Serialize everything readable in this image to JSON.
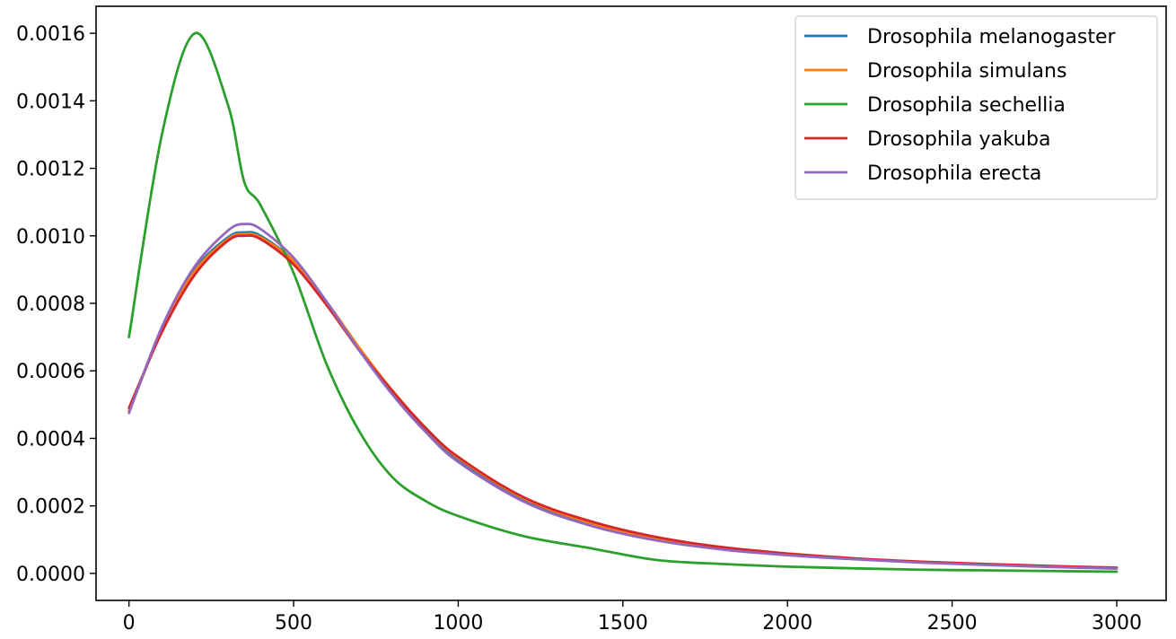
{
  "chart_data": {
    "type": "line",
    "title": "",
    "xlabel": "",
    "ylabel": "",
    "xlim": [
      -100,
      3150
    ],
    "ylim": [
      -8e-05,
      0.00168
    ],
    "xticks": [
      0,
      500,
      1000,
      1500,
      2000,
      2500,
      3000
    ],
    "xtick_labels": [
      "0",
      "500",
      "1000",
      "1500",
      "2000",
      "2500",
      "3000"
    ],
    "yticks": [
      0,
      0.0002,
      0.0004,
      0.0006,
      0.0008,
      0.001,
      0.0012,
      0.0014,
      0.0016
    ],
    "ytick_labels": [
      "0.0000",
      "0.0002",
      "0.0004",
      "0.0006",
      "0.0008",
      "0.0010",
      "0.0012",
      "0.0014",
      "0.0016"
    ],
    "grid": false,
    "legend_position": "top-right",
    "x": [
      0,
      100,
      200,
      300,
      350,
      400,
      500,
      600,
      700,
      800,
      900,
      1000,
      1200,
      1400,
      1600,
      1800,
      2000,
      2200,
      2400,
      2600,
      2800,
      3000
    ],
    "series": [
      {
        "name": "Drosophila melanogaster",
        "color": "#1f77b4",
        "values": [
          0.00048,
          0.00072,
          0.0009,
          0.000995,
          0.00101,
          0.001,
          0.000925,
          0.0008,
          0.00066,
          0.000535,
          0.000425,
          0.000335,
          0.000215,
          0.000145,
          0.0001,
          7.2e-05,
          5.5e-05,
          4.3e-05,
          3.3e-05,
          2.6e-05,
          2e-05,
          1.5e-05
        ]
      },
      {
        "name": "Drosophila simulans",
        "color": "#ff7f0e",
        "values": [
          0.00048,
          0.00072,
          0.000895,
          0.00099,
          0.001005,
          0.000995,
          0.000925,
          0.000805,
          0.000668,
          0.000542,
          0.000432,
          0.000342,
          0.000222,
          0.00015,
          0.000104,
          7.5e-05,
          5.7e-05,
          4.4e-05,
          3.4e-05,
          2.7e-05,
          2.1e-05,
          1.6e-05
        ]
      },
      {
        "name": "Drosophila sechellia",
        "color": "#2ca02c",
        "values": [
          0.0007,
          0.0013,
          0.0016,
          0.00139,
          0.00116,
          0.00109,
          0.00089,
          0.00062,
          0.00042,
          0.000285,
          0.000215,
          0.00017,
          0.00011,
          7.5e-05,
          4e-05,
          2.8e-05,
          2e-05,
          1.5e-05,
          1.1e-05,
          9e-06,
          7e-06,
          5e-06
        ]
      },
      {
        "name": "Drosophila yakuba",
        "color": "#d62728",
        "values": [
          0.00049,
          0.000715,
          0.000885,
          0.000985,
          0.001,
          0.00099,
          0.000915,
          0.000795,
          0.00066,
          0.00054,
          0.000432,
          0.000345,
          0.000225,
          0.000155,
          0.000108,
          7.8e-05,
          5.9e-05,
          4.5e-05,
          3.5e-05,
          2.8e-05,
          2.2e-05,
          1.7e-05
        ]
      },
      {
        "name": "Drosophila erecta",
        "color": "#9467bd",
        "values": [
          0.000475,
          0.00073,
          0.00091,
          0.001015,
          0.001035,
          0.00102,
          0.000935,
          0.000805,
          0.00066,
          0.00053,
          0.00042,
          0.00033,
          0.000212,
          0.000142,
          9.8e-05,
          7.1e-05,
          5.4e-05,
          4.2e-05,
          3.2e-05,
          2.5e-05,
          1.9e-05,
          1.4e-05
        ]
      }
    ]
  }
}
